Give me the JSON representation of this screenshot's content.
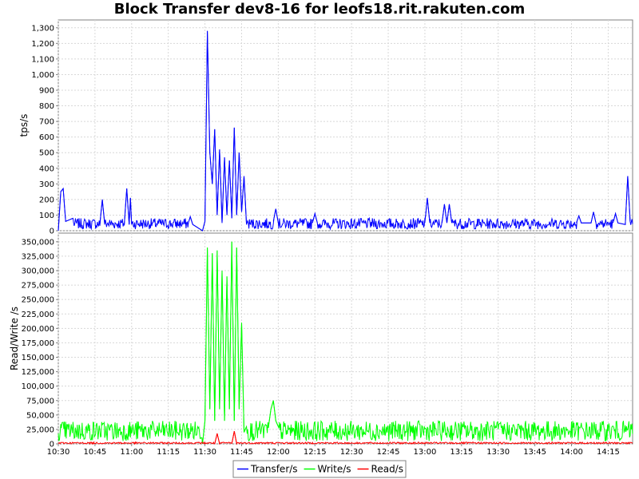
{
  "chart_data": {
    "type": "line",
    "title": "Block Transfer dev8-16 for leofs18.rit.rakuten.com",
    "x_ticks": [
      "10:30",
      "10:45",
      "11:00",
      "11:15",
      "11:30",
      "11:45",
      "12:00",
      "12:15",
      "12:30",
      "12:45",
      "13:00",
      "13:15",
      "13:30",
      "13:45",
      "14:00",
      "14:15"
    ],
    "xlim": [
      "10:30",
      "14:25"
    ],
    "grid": true,
    "legend_position": "bottom",
    "panels": [
      {
        "ylabel": "tps/s",
        "ylim": [
          0,
          1350
        ],
        "y_ticks": [
          0,
          100,
          200,
          300,
          400,
          500,
          600,
          700,
          800,
          900,
          1000,
          1100,
          1200,
          1300
        ],
        "y_tick_labels": [
          "0",
          "100",
          "200",
          "300",
          "400",
          "500",
          "600",
          "700",
          "800",
          "900",
          "1,000",
          "1,100",
          "1,200",
          "1,300"
        ],
        "series": [
          {
            "name": "Transfer/s",
            "color": "#0000ff",
            "baseline": {
              "base": 10,
              "amp": 70
            },
            "points": [
              [
                "10:30",
                0
              ],
              [
                "10:31",
                250
              ],
              [
                "10:32",
                270
              ],
              [
                "10:33",
                60
              ],
              [
                "10:36",
                80
              ],
              [
                "10:47",
                40
              ],
              [
                "10:48",
                200
              ],
              [
                "10:49",
                40
              ],
              [
                "10:57",
                40
              ],
              [
                "10:58",
                270
              ],
              [
                "10:59",
                40
              ],
              [
                "10:59.5",
                210
              ],
              [
                "11:00",
                40
              ],
              [
                "11:23",
                40
              ],
              [
                "11:24",
                90
              ],
              [
                "11:25",
                40
              ],
              [
                "11:29",
                0
              ],
              [
                "11:30",
                60
              ],
              [
                "11:31",
                1280
              ],
              [
                "11:32",
                500
              ],
              [
                "11:33",
                300
              ],
              [
                "11:34",
                650
              ],
              [
                "11:35",
                100
              ],
              [
                "11:36",
                520
              ],
              [
                "11:37",
                50
              ],
              [
                "11:38",
                470
              ],
              [
                "11:39",
                100
              ],
              [
                "11:40",
                450
              ],
              [
                "11:41",
                80
              ],
              [
                "11:42",
                660
              ],
              [
                "11:43",
                100
              ],
              [
                "11:44",
                500
              ],
              [
                "11:45",
                120
              ],
              [
                "11:46",
                350
              ],
              [
                "11:47",
                40
              ],
              [
                "11:58",
                60
              ],
              [
                "11:59",
                140
              ],
              [
                "12:00",
                50
              ],
              [
                "12:14",
                50
              ],
              [
                "12:15",
                110
              ],
              [
                "12:16",
                50
              ],
              [
                "13:00",
                50
              ],
              [
                "13:01",
                210
              ],
              [
                "13:02",
                50
              ],
              [
                "13:07",
                50
              ],
              [
                "13:08",
                170
              ],
              [
                "13:09",
                50
              ],
              [
                "13:10",
                170
              ],
              [
                "13:11",
                50
              ],
              [
                "14:02",
                50
              ],
              [
                "14:03",
                95
              ],
              [
                "14:04",
                50
              ],
              [
                "14:08",
                50
              ],
              [
                "14:09",
                120
              ],
              [
                "14:10",
                50
              ],
              [
                "14:17",
                50
              ],
              [
                "14:18",
                110
              ],
              [
                "14:19",
                50
              ],
              [
                "14:22",
                40
              ],
              [
                "14:23",
                350
              ],
              [
                "14:24",
                60
              ]
            ]
          }
        ]
      },
      {
        "ylabel": "Read/Write /s",
        "ylim": [
          0,
          365000
        ],
        "y_ticks": [
          0,
          25000,
          50000,
          75000,
          100000,
          125000,
          150000,
          175000,
          200000,
          225000,
          250000,
          275000,
          300000,
          325000,
          350000
        ],
        "y_tick_labels": [
          "0",
          "25,000",
          "50,000",
          "75,000",
          "100,000",
          "125,000",
          "150,000",
          "175,000",
          "200,000",
          "225,000",
          "250,000",
          "275,000",
          "300,000",
          "325,000",
          "350,000"
        ],
        "series": [
          {
            "name": "Write/s",
            "color": "#00ff00",
            "baseline": {
              "base": 5000,
              "amp": 35000
            },
            "points": [
              [
                "11:29",
                0
              ],
              [
                "11:30",
                40000
              ],
              [
                "11:31",
                340000
              ],
              [
                "11:32",
                60000
              ],
              [
                "11:33",
                330000
              ],
              [
                "11:34",
                40000
              ],
              [
                "11:35",
                335000
              ],
              [
                "11:36",
                60000
              ],
              [
                "11:37",
                300000
              ],
              [
                "11:38",
                40000
              ],
              [
                "11:39",
                290000
              ],
              [
                "11:40",
                60000
              ],
              [
                "11:41",
                350000
              ],
              [
                "11:42",
                40000
              ],
              [
                "11:43",
                340000
              ],
              [
                "11:44",
                60000
              ],
              [
                "11:45",
                210000
              ],
              [
                "11:46",
                20000
              ],
              [
                "11:47",
                30000
              ],
              [
                "11:56",
                30000
              ],
              [
                "11:57",
                60000
              ],
              [
                "11:58",
                75000
              ],
              [
                "11:59",
                40000
              ],
              [
                "12:00",
                30000
              ]
            ]
          },
          {
            "name": "Read/s",
            "color": "#ff0000",
            "baseline": {
              "base": 0,
              "amp": 3000
            },
            "points": [
              [
                "11:34",
                0
              ],
              [
                "11:35",
                18000
              ],
              [
                "11:36",
                0
              ],
              [
                "11:41",
                0
              ],
              [
                "11:42",
                22000
              ],
              [
                "11:43",
                0
              ]
            ]
          }
        ]
      }
    ]
  }
}
